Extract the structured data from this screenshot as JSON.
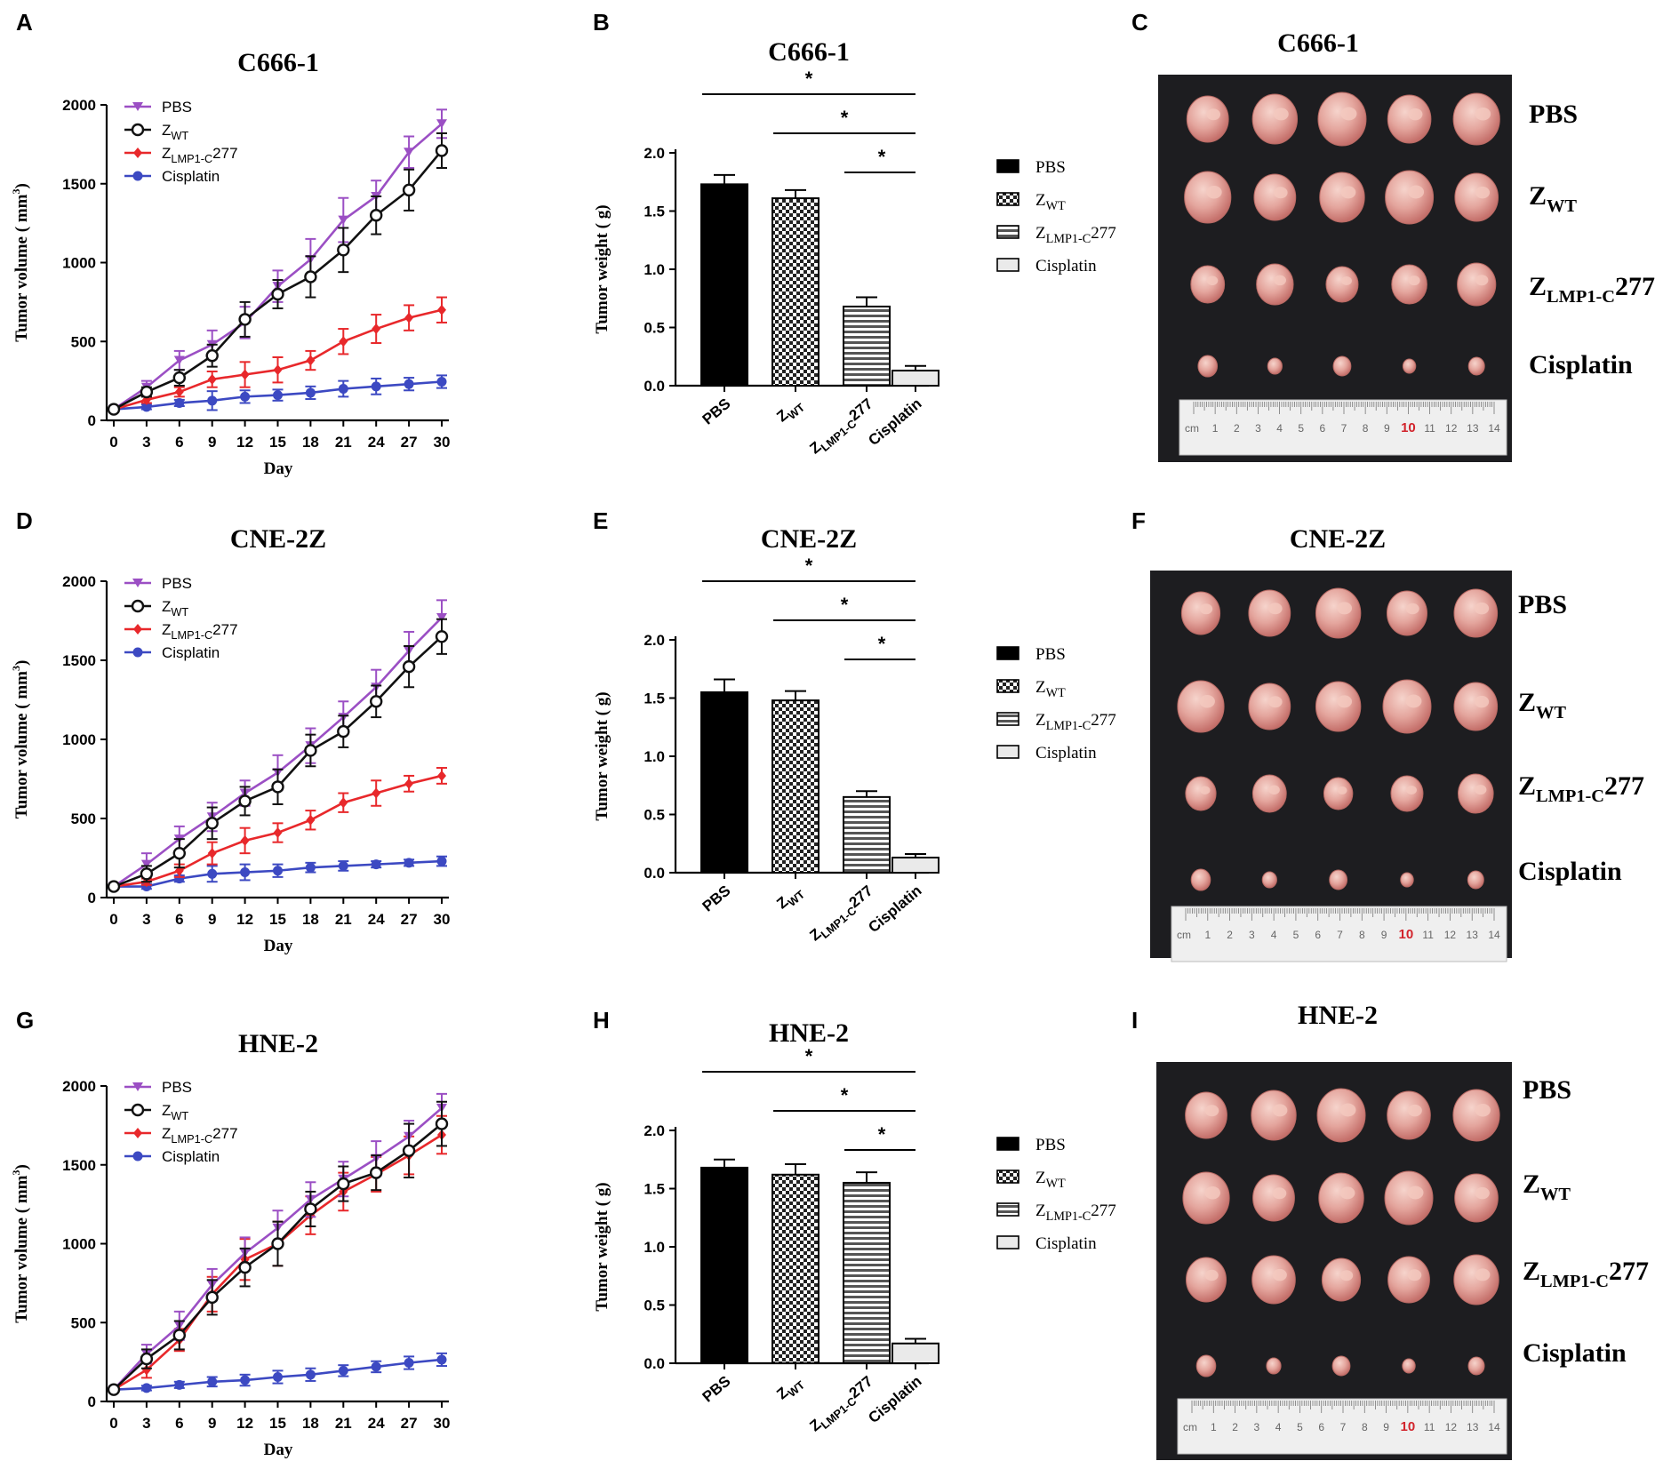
{
  "groups": [
    "PBS",
    "Z_WT",
    "Z_LMP1-C277",
    "Cisplatin"
  ],
  "colors": {
    "PBS": "#9b4fc4",
    "Z_WT": "#111111",
    "Z_LMP1-C277": "#e8282b",
    "Cisplatin": "#3c49c2"
  },
  "label_text": {
    "pbs": "PBS",
    "z": "Z",
    "wt_sub": "WT",
    "lmp_sub": "LMP1-C",
    "num": "277",
    "cisplatin": "Cisplatin",
    "day": "Day",
    "vol_axis": "Tumor volume ( mm",
    "vol_sup": "3",
    "vol_close": ")",
    "weight_axis": "Tumor weight ( g)",
    "star": "*"
  },
  "panels": {
    "A": {
      "letter": "A",
      "title": "C666-1"
    },
    "B": {
      "letter": "B",
      "title": "C666-1"
    },
    "C": {
      "letter": "C",
      "title": "C666-1"
    },
    "D": {
      "letter": "D",
      "title": "CNE-2Z"
    },
    "E": {
      "letter": "E",
      "title": "CNE-2Z"
    },
    "F": {
      "letter": "F",
      "title": "CNE-2Z"
    },
    "G": {
      "letter": "G",
      "title": "HNE-2"
    },
    "H": {
      "letter": "H",
      "title": "HNE-2"
    },
    "I": {
      "letter": "I",
      "title": "HNE-2"
    }
  },
  "ruler_numbers": [
    "1",
    "2",
    "3",
    "4",
    "5",
    "6",
    "7",
    "8",
    "9",
    "10",
    "11",
    "12",
    "13",
    "14"
  ],
  "ruler_prefix": "cm",
  "chart_data": [
    {
      "id": "A",
      "type": "line",
      "title": "C666-1",
      "xlabel": "Day",
      "ylabel": "Tumor volume ( mm3)",
      "x": [
        0,
        3,
        6,
        9,
        12,
        15,
        18,
        21,
        24,
        27,
        30
      ],
      "ylim": [
        0,
        2000
      ],
      "yticks": [
        0,
        500,
        1000,
        1500,
        2000
      ],
      "series": [
        {
          "name": "PBS",
          "values": [
            70,
            210,
            380,
            480,
            620,
            850,
            1020,
            1270,
            1420,
            1700,
            1880
          ],
          "errors": [
            10,
            40,
            60,
            90,
            100,
            100,
            130,
            140,
            100,
            100,
            90
          ]
        },
        {
          "name": "Z_WT",
          "values": [
            70,
            180,
            270,
            410,
            640,
            800,
            910,
            1080,
            1300,
            1460,
            1710
          ],
          "errors": [
            10,
            30,
            50,
            70,
            110,
            90,
            130,
            140,
            120,
            130,
            110
          ]
        },
        {
          "name": "Z_LMP1-C277",
          "values": [
            70,
            130,
            180,
            260,
            290,
            320,
            380,
            500,
            580,
            650,
            700
          ],
          "errors": [
            10,
            20,
            30,
            50,
            80,
            80,
            60,
            80,
            90,
            80,
            80
          ]
        },
        {
          "name": "Cisplatin",
          "values": [
            70,
            85,
            110,
            125,
            150,
            160,
            175,
            200,
            215,
            230,
            245
          ],
          "errors": [
            10,
            15,
            20,
            60,
            40,
            35,
            40,
            50,
            50,
            40,
            40
          ]
        }
      ]
    },
    {
      "id": "B",
      "type": "bar",
      "title": "C666-1",
      "ylabel": "Tumor weight ( g)",
      "categories": [
        "PBS",
        "Z_WT",
        "Z_LMP1-C277",
        "Cisplatin"
      ],
      "values": [
        1.73,
        1.61,
        0.68,
        0.13
      ],
      "errors": [
        0.08,
        0.07,
        0.08,
        0.04
      ],
      "ylim": [
        0,
        2.0
      ],
      "yticks": [
        "0.0",
        "0.5",
        "1.0",
        "1.5",
        "2.0"
      ],
      "significance": [
        "PBS vs Cisplatin *",
        "Z_WT vs Cisplatin *",
        "Z_LMP1-C277 vs Cisplatin *"
      ]
    },
    {
      "id": "D",
      "type": "line",
      "title": "CNE-2Z",
      "xlabel": "Day",
      "ylabel": "Tumor volume ( mm3)",
      "x": [
        0,
        3,
        6,
        9,
        12,
        15,
        18,
        21,
        24,
        27,
        30
      ],
      "ylim": [
        0,
        2000
      ],
      "yticks": [
        0,
        500,
        1000,
        1500,
        2000
      ],
      "series": [
        {
          "name": "PBS",
          "values": [
            70,
            210,
            370,
            510,
            660,
            790,
            960,
            1140,
            1330,
            1560,
            1770
          ],
          "errors": [
            10,
            70,
            80,
            90,
            80,
            110,
            110,
            100,
            110,
            120,
            110
          ]
        },
        {
          "name": "Z_WT",
          "values": [
            70,
            150,
            280,
            470,
            610,
            700,
            930,
            1050,
            1240,
            1460,
            1650
          ],
          "errors": [
            10,
            50,
            90,
            100,
            90,
            110,
            100,
            100,
            100,
            130,
            110
          ]
        },
        {
          "name": "Z_LMP1-C277",
          "values": [
            70,
            100,
            170,
            280,
            360,
            410,
            490,
            600,
            660,
            720,
            770
          ],
          "errors": [
            10,
            20,
            40,
            70,
            80,
            60,
            60,
            60,
            80,
            50,
            50
          ]
        },
        {
          "name": "Cisplatin",
          "values": [
            70,
            70,
            120,
            150,
            160,
            170,
            190,
            200,
            210,
            220,
            230
          ],
          "errors": [
            10,
            15,
            20,
            50,
            50,
            40,
            30,
            30,
            20,
            20,
            30
          ]
        }
      ]
    },
    {
      "id": "E",
      "type": "bar",
      "title": "CNE-2Z",
      "ylabel": "Tumor weight ( g)",
      "categories": [
        "PBS",
        "Z_WT",
        "Z_LMP1-C277",
        "Cisplatin"
      ],
      "values": [
        1.55,
        1.48,
        0.65,
        0.13
      ],
      "errors": [
        0.11,
        0.08,
        0.05,
        0.03
      ],
      "ylim": [
        0,
        2.0
      ],
      "yticks": [
        "0.0",
        "0.5",
        "1.0",
        "1.5",
        "2.0"
      ],
      "significance": [
        "PBS vs Cisplatin *",
        "Z_WT vs Cisplatin *",
        "Z_LMP1-C277 vs Cisplatin *"
      ]
    },
    {
      "id": "G",
      "type": "line",
      "title": "HNE-2",
      "xlabel": "Day",
      "ylabel": "Tumor volume ( mm3)",
      "x": [
        0,
        3,
        6,
        9,
        12,
        15,
        18,
        21,
        24,
        27,
        30
      ],
      "ylim": [
        0,
        2000
      ],
      "yticks": [
        0,
        500,
        1000,
        1500,
        2000
      ],
      "series": [
        {
          "name": "PBS",
          "values": [
            75,
            300,
            480,
            740,
            940,
            1100,
            1280,
            1410,
            1540,
            1680,
            1860
          ],
          "errors": [
            10,
            60,
            90,
            100,
            100,
            110,
            110,
            110,
            110,
            100,
            90
          ]
        },
        {
          "name": "Z_WT",
          "values": [
            75,
            270,
            420,
            660,
            850,
            1000,
            1220,
            1380,
            1450,
            1590,
            1760
          ],
          "errors": [
            10,
            60,
            90,
            110,
            120,
            140,
            110,
            110,
            110,
            170,
            140
          ]
        },
        {
          "name": "Z_LMP1-C277",
          "values": [
            75,
            200,
            390,
            680,
            900,
            1000,
            1180,
            1330,
            1440,
            1560,
            1690
          ],
          "errors": [
            10,
            50,
            70,
            110,
            130,
            140,
            120,
            120,
            110,
            120,
            120
          ]
        },
        {
          "name": "Cisplatin",
          "values": [
            75,
            85,
            105,
            125,
            135,
            155,
            170,
            195,
            220,
            245,
            265
          ],
          "errors": [
            10,
            15,
            20,
            30,
            35,
            40,
            40,
            35,
            35,
            40,
            40
          ]
        }
      ]
    },
    {
      "id": "H",
      "type": "bar",
      "title": "HNE-2",
      "ylabel": "Tumor weight ( g)",
      "categories": [
        "PBS",
        "Z_WT",
        "Z_LMP1-C277",
        "Cisplatin"
      ],
      "values": [
        1.68,
        1.62,
        1.55,
        0.17
      ],
      "errors": [
        0.07,
        0.09,
        0.09,
        0.04
      ],
      "ylim": [
        0,
        2.0
      ],
      "yticks": [
        "0.0",
        "0.5",
        "1.0",
        "1.5",
        "2.0"
      ],
      "significance": [
        "PBS vs Cisplatin *",
        "Z_WT vs Cisplatin *",
        "Z_LMP1-C277 vs Cisplatin *"
      ]
    }
  ]
}
